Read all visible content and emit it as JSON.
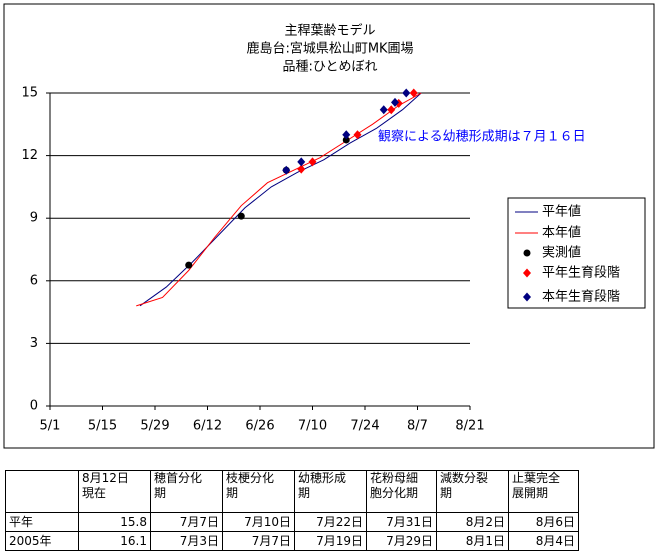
{
  "chart_data": {
    "type": "line",
    "title": [
      "主稈葉齢モデル",
      "鹿島台:宮城県松山町MK圃場",
      "品種:ひとめぼれ"
    ],
    "annotation": "観察による幼穂形成期は７月１６日",
    "xlim": [
      "5/1",
      "8/21"
    ],
    "xticks": [
      "5/1",
      "5/15",
      "5/29",
      "6/12",
      "6/26",
      "7/10",
      "7/24",
      "8/7",
      "8/21"
    ],
    "ylim": [
      0,
      15
    ],
    "yticks": [
      0,
      3,
      6,
      9,
      12,
      15
    ],
    "grid": true,
    "legend": "right",
    "series": [
      {
        "name": "平年値",
        "type": "line",
        "color": "#000080",
        "x": [
          "5/25",
          "6/1",
          "6/8",
          "6/15",
          "6/22",
          "6/29",
          "7/6",
          "7/13",
          "7/20",
          "7/27",
          "8/3",
          "8/8"
        ],
        "values": [
          4.8,
          5.7,
          6.9,
          8.2,
          9.5,
          10.5,
          11.2,
          11.8,
          12.6,
          13.3,
          14.2,
          15.0
        ]
      },
      {
        "name": "本年値",
        "type": "line",
        "color": "#ff0000",
        "x": [
          "5/24",
          "5/31",
          "6/7",
          "6/14",
          "6/21",
          "6/28",
          "7/5",
          "7/12",
          "7/19",
          "7/26",
          "8/2",
          "8/8"
        ],
        "values": [
          4.8,
          5.2,
          6.5,
          8.1,
          9.6,
          10.7,
          11.3,
          11.9,
          12.7,
          13.5,
          14.4,
          15.0
        ]
      },
      {
        "name": "実測値",
        "type": "scatter",
        "marker": "circle",
        "color": "#000000",
        "x": [
          "6/7",
          "6/21",
          "7/3",
          "7/19"
        ],
        "values": [
          6.75,
          9.1,
          11.3,
          12.75
        ]
      },
      {
        "name": "平年生育段階",
        "type": "scatter",
        "marker": "diamond",
        "color": "#ff0000",
        "x": [
          "7/7",
          "7/10",
          "7/22",
          "7/31",
          "8/2",
          "8/6"
        ],
        "values": [
          11.35,
          11.7,
          13.0,
          14.2,
          14.5,
          15.0
        ]
      },
      {
        "name": "本年生育段階",
        "type": "scatter",
        "marker": "diamond",
        "color": "#000080",
        "x": [
          "7/3",
          "7/7",
          "7/19",
          "7/29",
          "8/1",
          "8/4"
        ],
        "values": [
          11.3,
          11.7,
          13.0,
          14.2,
          14.55,
          15.0
        ]
      }
    ]
  },
  "table": {
    "header": [
      [
        "8月12日",
        "現在"
      ],
      [
        "穂首分化",
        "期"
      ],
      [
        "枝梗分化",
        "期"
      ],
      [
        "幼穂形成",
        "期"
      ],
      [
        "花粉母細",
        "胞分化期"
      ],
      [
        "減数分裂",
        "期"
      ],
      [
        "止葉完全",
        "展開期"
      ]
    ],
    "rows": [
      [
        "平年",
        15.8,
        "7月7日",
        "7月10日",
        "7月22日",
        "7月31日",
        "8月2日",
        "8月6日"
      ],
      [
        "2005年",
        16.1,
        "7月3日",
        "7月7日",
        "7月19日",
        "7月29日",
        "8月1日",
        "8月4日"
      ]
    ]
  }
}
